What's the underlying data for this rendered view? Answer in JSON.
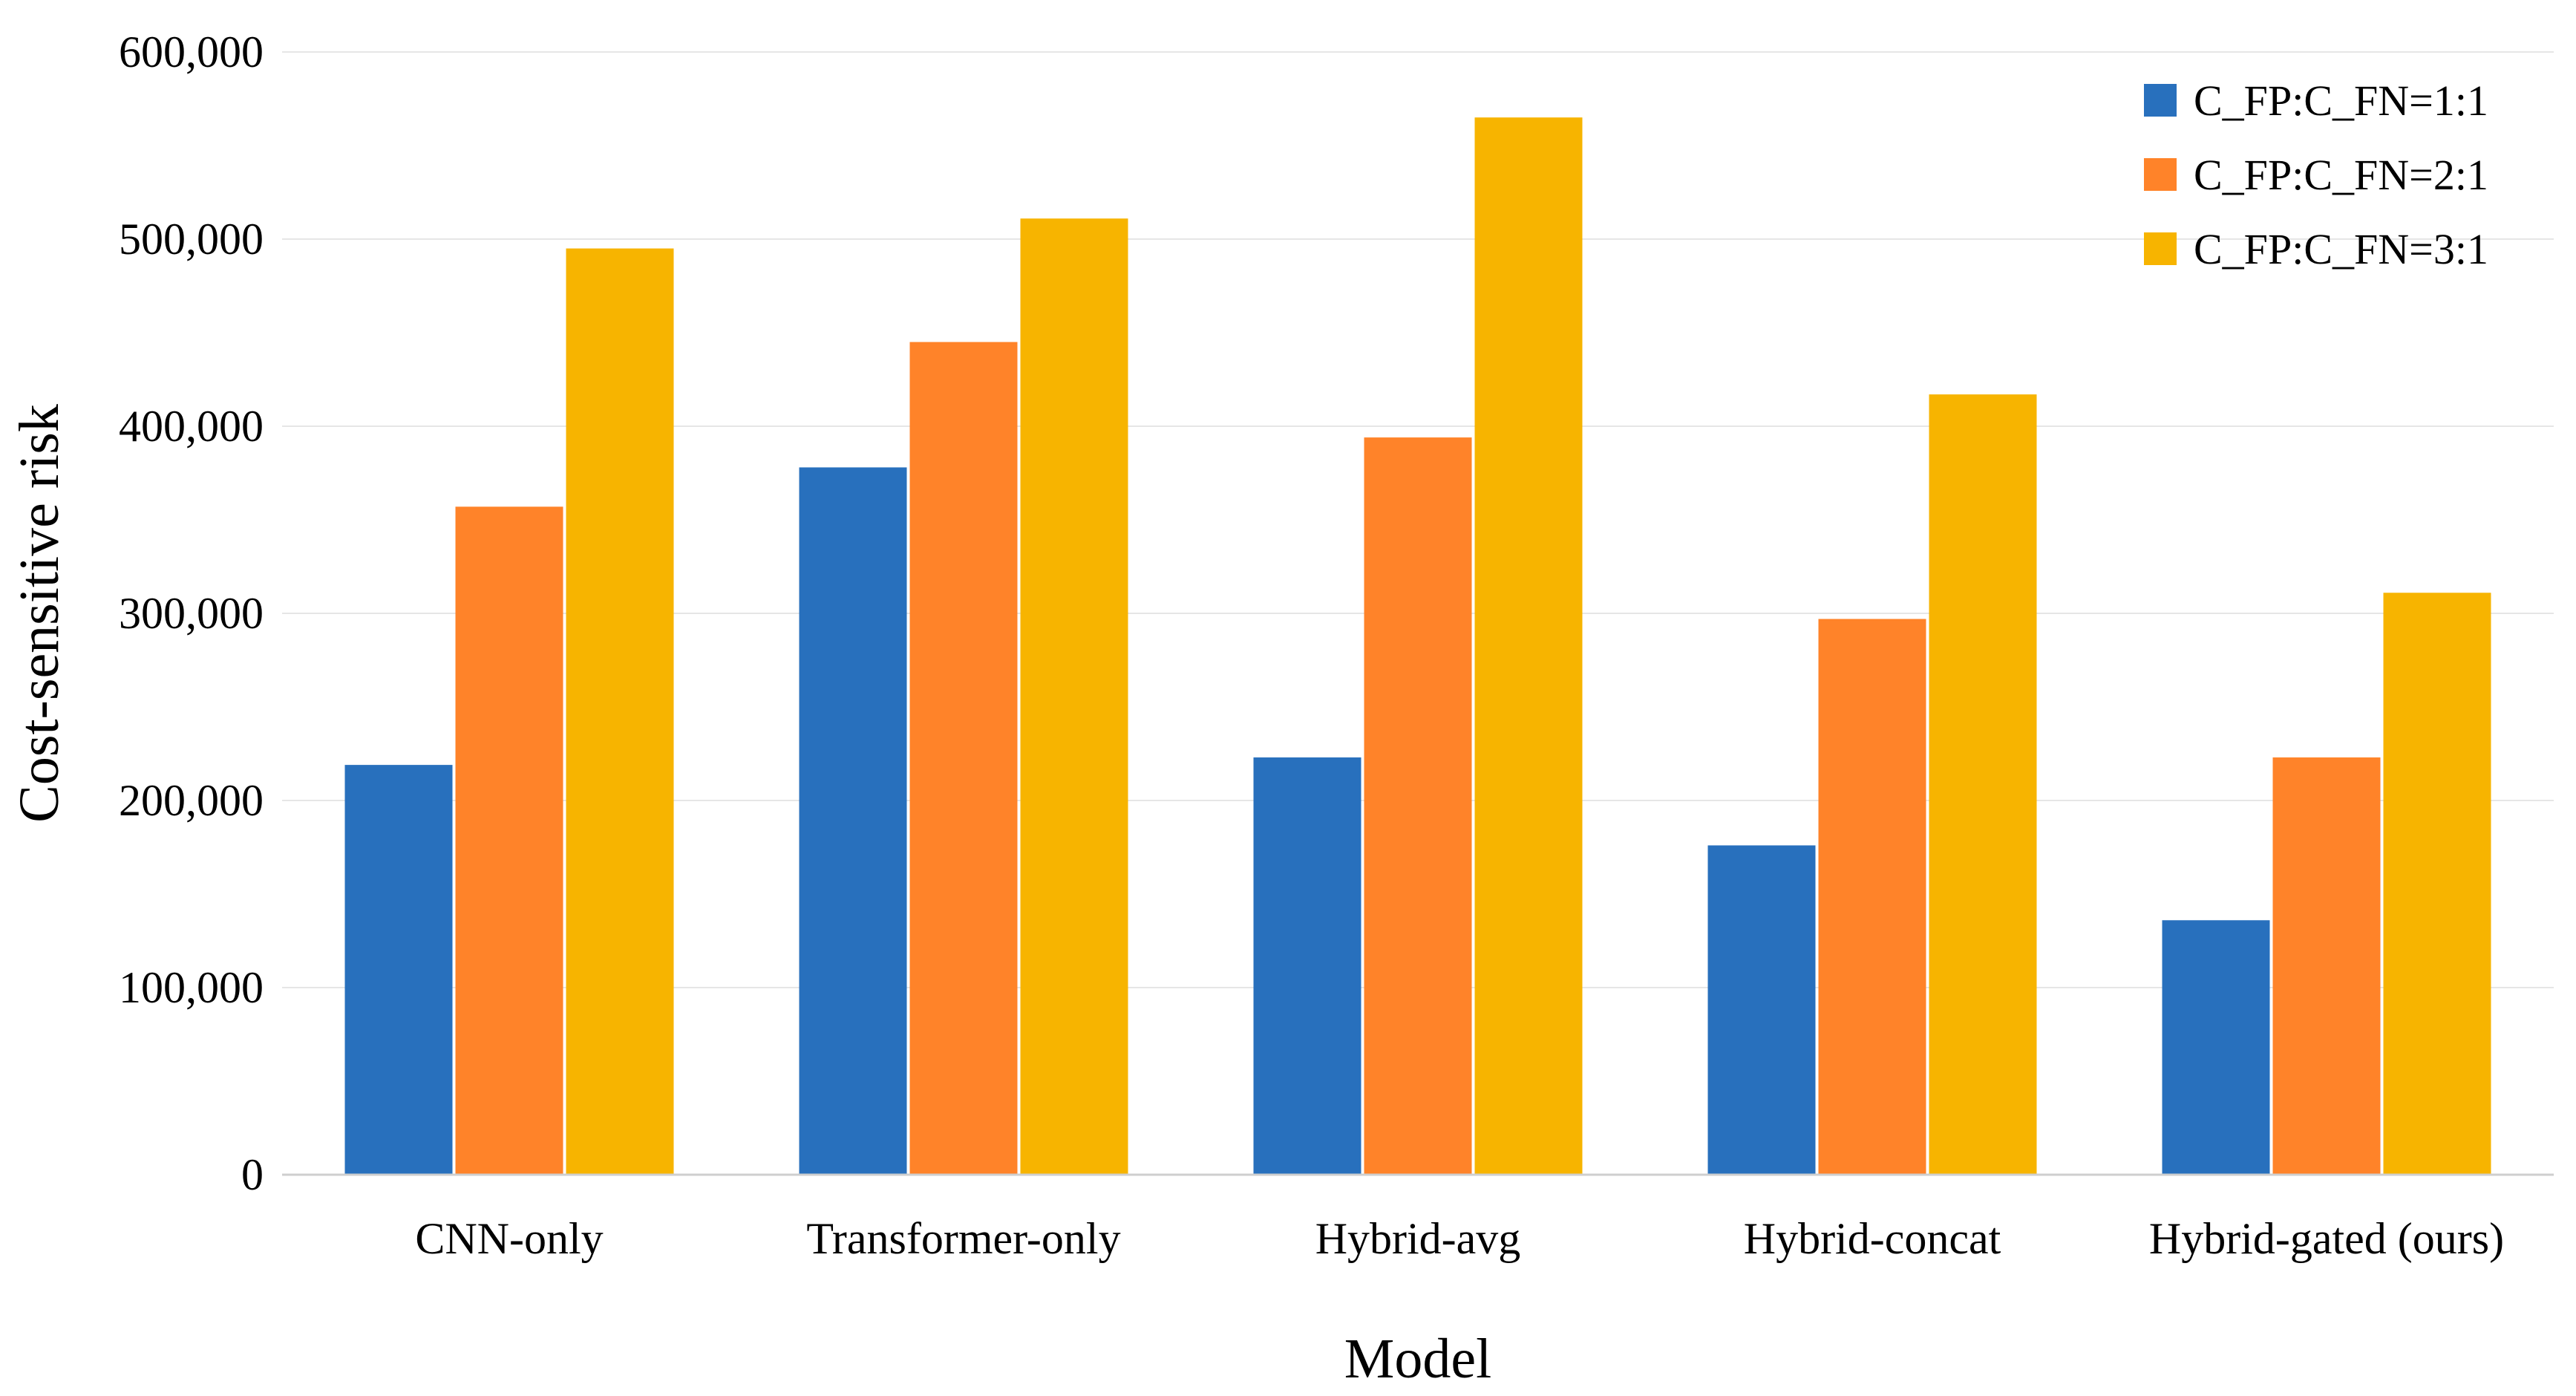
{
  "chart_data": {
    "type": "bar",
    "xlabel": "Model",
    "ylabel": "Cost-sensitive risk",
    "categories": [
      "CNN-only",
      "Transformer-only",
      "Hybrid-avg",
      "Hybrid-concat",
      "Hybrid-gated (ours)"
    ],
    "series": [
      {
        "name": "C_FP:C_FN=1:1",
        "color": "#2870BD",
        "values": [
          219000,
          378000,
          223000,
          176000,
          136000
        ]
      },
      {
        "name": "C_FP:C_FN=2:1",
        "color": "#FF8329",
        "values": [
          357000,
          445000,
          394000,
          297000,
          223000
        ]
      },
      {
        "name": "C_FP:C_FN=3:1",
        "color": "#F7B400",
        "values": [
          495000,
          511000,
          565000,
          417000,
          311000
        ]
      }
    ],
    "ylim": [
      0,
      600000
    ],
    "yticks": [
      "0",
      "100,000",
      "200,000",
      "300,000",
      "400,000",
      "500,000",
      "600,000"
    ],
    "grid": true,
    "legend_position": "top-right"
  }
}
